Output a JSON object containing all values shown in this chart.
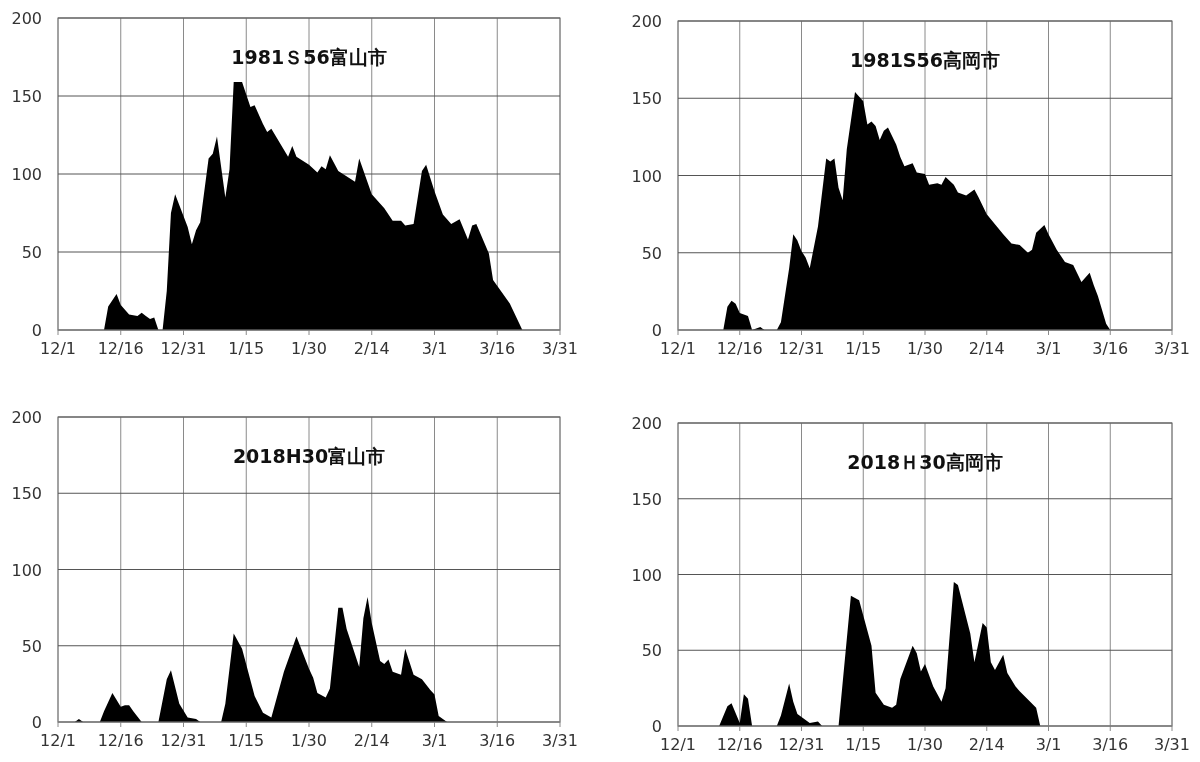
{
  "chart_data": [
    {
      "type": "area",
      "title": "1981Ｓ56富山市",
      "color": "#000000",
      "grid": true,
      "xlim": [
        "1980-12-01",
        "1981-03-31"
      ],
      "ylim": [
        0,
        200
      ],
      "xticks": [
        {
          "value": "1980-12-01",
          "label": "12/1"
        },
        {
          "value": "1980-12-16",
          "label": "12/16"
        },
        {
          "value": "1980-12-31",
          "label": "12/31"
        },
        {
          "value": "1981-01-15",
          "label": "1/15"
        },
        {
          "value": "1981-01-30",
          "label": "1/30"
        },
        {
          "value": "1981-02-14",
          "label": "2/14"
        },
        {
          "value": "1981-03-01",
          "label": "3/1"
        },
        {
          "value": "1981-03-16",
          "label": "3/16"
        },
        {
          "value": "1981-03-31",
          "label": "3/31"
        }
      ],
      "yticks": [
        0,
        50,
        100,
        150,
        200
      ],
      "x": [
        "1980-12-12",
        "1980-12-13",
        "1980-12-15",
        "1980-12-16",
        "1980-12-18",
        "1980-12-20",
        "1980-12-21",
        "1980-12-22",
        "1980-12-23",
        "1980-12-24",
        "1980-12-25",
        "1980-12-26",
        "1980-12-27",
        "1980-12-28",
        "1980-12-29",
        "1981-01-01",
        "1981-01-02",
        "1981-01-03",
        "1981-01-04",
        "1981-01-06",
        "1981-01-07",
        "1981-01-08",
        "1981-01-10",
        "1981-01-11",
        "1981-01-12",
        "1981-01-14",
        "1981-01-16",
        "1981-01-17",
        "1981-01-19",
        "1981-01-20",
        "1981-01-21",
        "1981-01-25",
        "1981-01-26",
        "1981-01-27",
        "1981-01-30",
        "1981-02-01",
        "1981-02-02",
        "1981-02-03",
        "1981-02-04",
        "1981-02-06",
        "1981-02-10",
        "1981-02-11",
        "1981-02-14",
        "1981-02-17",
        "1981-02-19",
        "1981-02-21",
        "1981-02-22",
        "1981-02-24",
        "1981-02-26",
        "1981-02-27",
        "1981-03-01",
        "1981-03-03",
        "1981-03-05",
        "1981-03-07",
        "1981-03-09",
        "1981-03-10",
        "1981-03-11",
        "1981-03-14",
        "1981-03-15",
        "1981-03-19",
        "1981-03-22"
      ],
      "values": [
        0,
        15,
        23,
        16,
        10,
        9,
        11,
        9,
        7,
        8,
        0,
        0,
        25,
        75,
        87,
        66,
        55,
        64,
        69,
        110,
        113,
        124,
        85,
        103,
        159,
        159,
        143,
        144,
        132,
        127,
        129,
        111,
        118,
        111,
        106,
        101,
        105,
        103,
        112,
        102,
        95,
        110,
        87,
        78,
        70,
        70,
        67,
        68,
        102,
        106,
        89,
        74,
        68,
        71,
        58,
        67,
        68,
        49,
        32,
        17,
        0
      ]
    },
    {
      "type": "area",
      "title": "1981S56高岡市",
      "color": "#000000",
      "grid": true,
      "xlim": [
        "1980-12-01",
        "1981-03-31"
      ],
      "ylim": [
        0,
        200
      ],
      "xticks": [
        {
          "value": "1980-12-01",
          "label": "12/1"
        },
        {
          "value": "1980-12-16",
          "label": "12/16"
        },
        {
          "value": "1980-12-31",
          "label": "12/31"
        },
        {
          "value": "1981-01-15",
          "label": "1/15"
        },
        {
          "value": "1981-01-30",
          "label": "1/30"
        },
        {
          "value": "1981-02-14",
          "label": "2/14"
        },
        {
          "value": "1981-03-01",
          "label": "3/1"
        },
        {
          "value": "1981-03-16",
          "label": "3/16"
        },
        {
          "value": "1981-03-31",
          "label": "3/31"
        }
      ],
      "yticks": [
        0,
        50,
        100,
        150,
        200
      ],
      "x": [
        "1980-12-01",
        "1980-12-12",
        "1980-12-13",
        "1980-12-14",
        "1980-12-15",
        "1980-12-16",
        "1980-12-18",
        "1980-12-19",
        "1980-12-21",
        "1980-12-22",
        "1980-12-25",
        "1980-12-26",
        "1980-12-28",
        "1980-12-29",
        "1980-12-30",
        "1980-12-31",
        "1981-01-01",
        "1981-01-02",
        "1981-01-04",
        "1981-01-06",
        "1981-01-07",
        "1981-01-08",
        "1981-01-09",
        "1981-01-10",
        "1981-01-11",
        "1981-01-13",
        "1981-01-15",
        "1981-01-16",
        "1981-01-17",
        "1981-01-18",
        "1981-01-19",
        "1981-01-20",
        "1981-01-21",
        "1981-01-23",
        "1981-01-24",
        "1981-01-25",
        "1981-01-27",
        "1981-01-28",
        "1981-01-30",
        "1981-01-31",
        "1981-02-02",
        "1981-02-03",
        "1981-02-04",
        "1981-02-06",
        "1981-02-07",
        "1981-02-09",
        "1981-02-11",
        "1981-02-12",
        "1981-02-14",
        "1981-02-18",
        "1981-02-20",
        "1981-02-22",
        "1981-02-24",
        "1981-02-25",
        "1981-02-26",
        "1981-02-28",
        "1981-03-01",
        "1981-03-03",
        "1981-03-05",
        "1981-03-07",
        "1981-03-09",
        "1981-03-11",
        "1981-03-12",
        "1981-03-13",
        "1981-03-15",
        "1981-03-16",
        "1981-03-31"
      ],
      "values": [
        0,
        0,
        15,
        19,
        17,
        11,
        9,
        0,
        2,
        0,
        0,
        5,
        40,
        62,
        58,
        51,
        47,
        40,
        67,
        111,
        109,
        111,
        92,
        84,
        117,
        154,
        148,
        133,
        135,
        132,
        123,
        129,
        131,
        120,
        112,
        106,
        108,
        102,
        101,
        94,
        95,
        94,
        99,
        94,
        89,
        87,
        91,
        86,
        75,
        62,
        56,
        55,
        50,
        52,
        63,
        68,
        62,
        52,
        44,
        42,
        31,
        37,
        29,
        22,
        4,
        0,
        0
      ]
    },
    {
      "type": "area",
      "title": "2018H30富山市",
      "color": "#000000",
      "grid": true,
      "xlim": [
        "2017-12-01",
        "2018-03-31"
      ],
      "ylim": [
        0,
        200
      ],
      "xticks": [
        {
          "value": "2017-12-01",
          "label": "12/1"
        },
        {
          "value": "2017-12-16",
          "label": "12/16"
        },
        {
          "value": "2017-12-31",
          "label": "12/31"
        },
        {
          "value": "2018-01-15",
          "label": "1/15"
        },
        {
          "value": "2018-01-30",
          "label": "1/30"
        },
        {
          "value": "2018-02-14",
          "label": "2/14"
        },
        {
          "value": "2018-03-01",
          "label": "3/1"
        },
        {
          "value": "2018-03-16",
          "label": "3/16"
        },
        {
          "value": "2018-03-31",
          "label": "3/31"
        }
      ],
      "yticks": [
        0,
        50,
        100,
        150,
        200
      ],
      "x": [
        "2017-12-01",
        "2017-12-05",
        "2017-12-06",
        "2017-12-07",
        "2017-12-11",
        "2017-12-12",
        "2017-12-14",
        "2017-12-16",
        "2017-12-17",
        "2017-12-18",
        "2017-12-19",
        "2017-12-21",
        "2017-12-25",
        "2017-12-27",
        "2017-12-28",
        "2017-12-30",
        "2018-01-01",
        "2018-01-03",
        "2018-01-04",
        "2018-01-09",
        "2018-01-10",
        "2018-01-12",
        "2018-01-14",
        "2018-01-17",
        "2018-01-19",
        "2018-01-21",
        "2018-01-24",
        "2018-01-27",
        "2018-01-30",
        "2018-01-31",
        "2018-02-01",
        "2018-02-03",
        "2018-02-04",
        "2018-02-06",
        "2018-02-07",
        "2018-02-08",
        "2018-02-11",
        "2018-02-12",
        "2018-02-13",
        "2018-02-14",
        "2018-02-16",
        "2018-02-17",
        "2018-02-18",
        "2018-02-19",
        "2018-02-21",
        "2018-02-22",
        "2018-02-24",
        "2018-02-26",
        "2018-02-28",
        "2018-03-01",
        "2018-03-02",
        "2018-03-04",
        "2018-03-31"
      ],
      "values": [
        0,
        0,
        2,
        0,
        0,
        7,
        19,
        10,
        11,
        11,
        7,
        0,
        0,
        28,
        34,
        12,
        3,
        2,
        0,
        0,
        12,
        58,
        48,
        17,
        6,
        3,
        33,
        56,
        35,
        29,
        19,
        16,
        22,
        75,
        75,
        61,
        36,
        68,
        82,
        65,
        40,
        38,
        41,
        33,
        31,
        48,
        31,
        28,
        21,
        18,
        4,
        0,
        0
      ]
    },
    {
      "type": "area",
      "title": "2018Ｈ30高岡市",
      "color": "#000000",
      "grid": true,
      "xlim": [
        "2017-12-01",
        "2018-03-31"
      ],
      "ylim": [
        0,
        200
      ],
      "xticks": [
        {
          "value": "2017-12-01",
          "label": "12/1"
        },
        {
          "value": "2017-12-16",
          "label": "12/16"
        },
        {
          "value": "2017-12-31",
          "label": "12/31"
        },
        {
          "value": "2018-01-15",
          "label": "1/15"
        },
        {
          "value": "2018-01-30",
          "label": "1/30"
        },
        {
          "value": "2018-02-14",
          "label": "2/14"
        },
        {
          "value": "2018-03-01",
          "label": "3/1"
        },
        {
          "value": "2018-03-16",
          "label": "3/16"
        },
        {
          "value": "2018-03-31",
          "label": "3/31"
        }
      ],
      "yticks": [
        0,
        50,
        100,
        150,
        200
      ],
      "x": [
        "2017-12-01",
        "2017-12-11",
        "2017-12-13",
        "2017-12-14",
        "2017-12-16",
        "2017-12-17",
        "2017-12-18",
        "2017-12-19",
        "2017-12-25",
        "2017-12-26",
        "2017-12-28",
        "2017-12-29",
        "2017-12-30",
        "2018-01-02",
        "2018-01-04",
        "2018-01-05",
        "2018-01-09",
        "2018-01-12",
        "2018-01-14",
        "2018-01-17",
        "2018-01-18",
        "2018-01-20",
        "2018-01-22",
        "2018-01-23",
        "2018-01-24",
        "2018-01-27",
        "2018-01-28",
        "2018-01-29",
        "2018-01-30",
        "2018-02-01",
        "2018-02-03",
        "2018-02-04",
        "2018-02-06",
        "2018-02-07",
        "2018-02-10",
        "2018-02-11",
        "2018-02-13",
        "2018-02-14",
        "2018-02-15",
        "2018-02-16",
        "2018-02-18",
        "2018-02-19",
        "2018-02-21",
        "2018-02-22",
        "2018-02-26",
        "2018-02-27",
        "2018-03-31"
      ],
      "values": [
        0,
        0,
        13,
        15,
        2,
        21,
        18,
        0,
        0,
        7,
        28,
        16,
        8,
        2,
        3,
        0,
        0,
        86,
        83,
        53,
        22,
        14,
        12,
        14,
        31,
        53,
        48,
        36,
        41,
        26,
        16,
        25,
        95,
        93,
        61,
        42,
        68,
        65,
        42,
        37,
        47,
        35,
        26,
        23,
        12,
        0,
        0
      ]
    }
  ]
}
